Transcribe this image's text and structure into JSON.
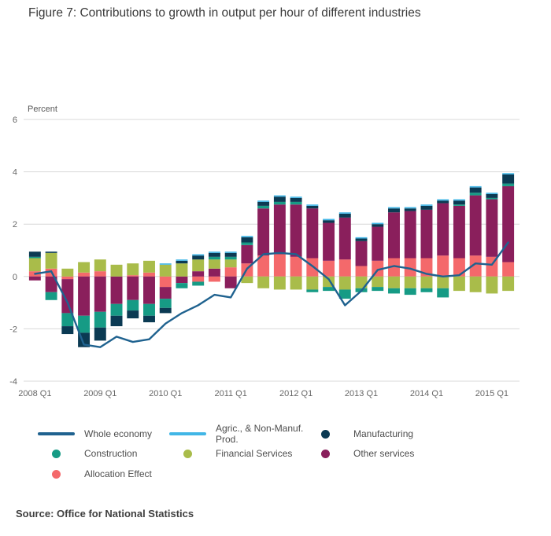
{
  "page": {
    "title": "Figure 7: Contributions to growth in output per hour of different industries",
    "source": "Source: Office for National Statistics"
  },
  "colors": {
    "whole_economy": "#1f628f",
    "agric_non_manuf": "#41b6e6",
    "manufacturing": "#0b3a53",
    "construction": "#169b85",
    "financial_services": "#a9bc4a",
    "other_services": "#8a1f5c",
    "allocation_effect": "#f4696b",
    "grid": "#d8d8d8",
    "axis_text": "#666666"
  },
  "chart_data": {
    "type": "bar",
    "subtype": "stacked-bar-with-line",
    "title": "Figure 7: Contributions to growth in output per hour of different industries",
    "ylabel": "Percent",
    "xlabel": "",
    "ylim": [
      -4,
      6
    ],
    "yticks": [
      6,
      4,
      2,
      0,
      -2,
      -4
    ],
    "x_tick_every": 4,
    "grid": "horizontal",
    "legend_position": "bottom",
    "categories": [
      "2008 Q1",
      "2008 Q2",
      "2008 Q3",
      "2008 Q4",
      "2009 Q1",
      "2009 Q2",
      "2009 Q3",
      "2009 Q4",
      "2010 Q1",
      "2010 Q2",
      "2010 Q3",
      "2010 Q4",
      "2011 Q1",
      "2011 Q2",
      "2011 Q3",
      "2011 Q4",
      "2012 Q1",
      "2012 Q2",
      "2012 Q3",
      "2012 Q4",
      "2013 Q1",
      "2013 Q2",
      "2013 Q3",
      "2013 Q4",
      "2014 Q1",
      "2014 Q2",
      "2014 Q3",
      "2014 Q4",
      "2015 Q1",
      "2015 Q2"
    ],
    "series": [
      {
        "name": "Allocation Effect",
        "color": "#f4696b",
        "values": [
          0.2,
          0.3,
          -0.1,
          0.15,
          0.2,
          0,
          0.05,
          0.15,
          -0.4,
          0,
          -0.2,
          -0.2,
          0.35,
          0.5,
          0.8,
          0.85,
          0.75,
          0.7,
          0.6,
          0.65,
          0.4,
          0.6,
          0.7,
          0.7,
          0.7,
          0.8,
          0.7,
          0.8,
          0.75,
          0.55
        ]
      },
      {
        "name": "Other services",
        "color": "#8a1f5c",
        "values": [
          -0.15,
          -0.6,
          -1.3,
          -1.5,
          -1.35,
          -1.05,
          -0.9,
          -1.05,
          -0.45,
          -0.25,
          0.2,
          0.3,
          -0.45,
          0.7,
          1.8,
          1.9,
          2.0,
          1.9,
          1.45,
          1.6,
          0.95,
          1.3,
          1.75,
          1.8,
          1.85,
          2.0,
          2.0,
          2.3,
          2.2,
          2.9
        ]
      },
      {
        "name": "Financial Services",
        "color": "#a9bc4a",
        "values": [
          0.5,
          0.6,
          0.3,
          0.4,
          0.45,
          0.45,
          0.45,
          0.45,
          0.45,
          0.5,
          0.45,
          0.35,
          0.3,
          -0.25,
          -0.45,
          -0.5,
          -0.5,
          -0.5,
          -0.4,
          -0.5,
          -0.45,
          -0.4,
          -0.45,
          -0.45,
          -0.45,
          -0.45,
          -0.55,
          -0.6,
          -0.65,
          -0.55
        ]
      },
      {
        "name": "Construction",
        "color": "#169b85",
        "values": [
          0.05,
          -0.3,
          -0.5,
          -0.65,
          -0.6,
          -0.45,
          -0.4,
          -0.45,
          -0.35,
          -0.2,
          -0.15,
          0.1,
          0.1,
          0.1,
          0.1,
          0.1,
          0.1,
          -0.1,
          -0.15,
          -0.35,
          -0.15,
          -0.15,
          -0.2,
          -0.25,
          -0.15,
          -0.35,
          0.05,
          0.1,
          0.05,
          0.1
        ]
      },
      {
        "name": "Manufacturing",
        "color": "#0b3a53",
        "values": [
          0.2,
          0.05,
          -0.3,
          -0.55,
          -0.5,
          -0.4,
          -0.3,
          -0.25,
          -0.2,
          0.1,
          0.15,
          0.15,
          0.15,
          0.2,
          0.15,
          0.2,
          0.15,
          0.1,
          0.1,
          0.15,
          0.1,
          0.1,
          0.15,
          0.1,
          0.15,
          0.1,
          0.15,
          0.2,
          0.15,
          0.35
        ]
      },
      {
        "name": "Agric., & Non-Manuf. Prod.",
        "color": "#41b6e6",
        "values": [
          0,
          0,
          0,
          0,
          0,
          0,
          0,
          0,
          0.05,
          0.05,
          0.05,
          0.05,
          0.05,
          0.05,
          0.05,
          0.05,
          0.05,
          0.05,
          0.05,
          0.05,
          0.05,
          0.05,
          0.05,
          0.05,
          0.05,
          0.05,
          0.05,
          0.05,
          0.05,
          0.05
        ]
      }
    ],
    "line": {
      "name": "Whole economy",
      "color": "#1f628f",
      "values": [
        0.1,
        0.2,
        -1.0,
        -2.6,
        -2.7,
        -2.3,
        -2.5,
        -2.4,
        -1.8,
        -1.4,
        -1.1,
        -0.7,
        -0.8,
        0.3,
        0.85,
        0.9,
        0.85,
        0.4,
        -0.1,
        -1.1,
        -0.55,
        0.25,
        0.4,
        0.3,
        0.1,
        0.0,
        0.05,
        0.5,
        0.45,
        1.3
      ]
    }
  },
  "legend": {
    "rows": [
      [
        {
          "label": "Whole economy",
          "swatch": "line",
          "color": "#1f628f"
        },
        {
          "label": "Agric., & Non-Manuf. Prod.",
          "swatch": "line",
          "color": "#41b6e6"
        },
        {
          "label": "Manufacturing",
          "swatch": "dot",
          "color": "#0b3a53"
        }
      ],
      [
        {
          "label": "Construction",
          "swatch": "dot",
          "color": "#169b85"
        },
        {
          "label": "Financial Services",
          "swatch": "dot",
          "color": "#a9bc4a"
        },
        {
          "label": "Other services",
          "swatch": "dot",
          "color": "#8a1f5c"
        }
      ],
      [
        {
          "label": "Allocation Effect",
          "swatch": "dot",
          "color": "#f4696b"
        }
      ]
    ]
  }
}
